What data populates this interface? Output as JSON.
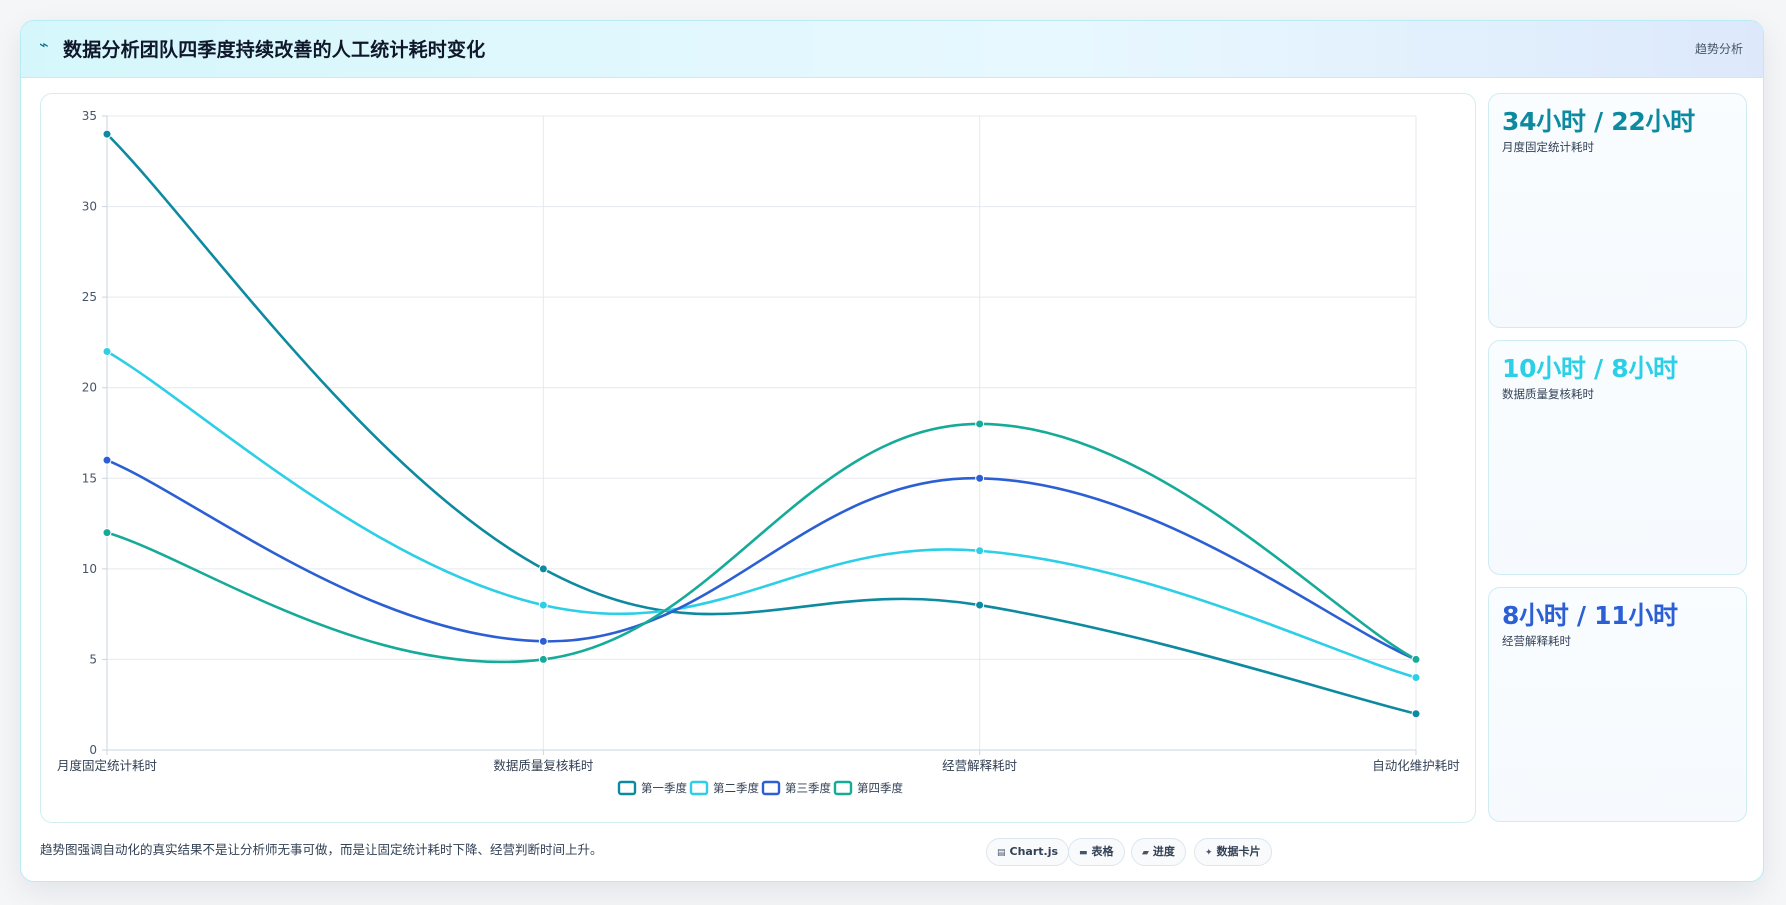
{
  "header": {
    "icon": "trend-line-icon",
    "title": "数据分析团队四季度持续改善的人工统计耗时变化",
    "tag": "趋势分析"
  },
  "colors": {
    "series": [
      "#0e8aa0",
      "#2ccfe6",
      "#2b5fd3",
      "#16ab98"
    ]
  },
  "chart_data": {
    "type": "line",
    "smooth": true,
    "categories": [
      "月度固定统计耗时",
      "数据质量复核耗时",
      "经营解释耗时",
      "自动化维护耗时"
    ],
    "series": [
      {
        "name": "第一季度",
        "values": [
          34,
          10,
          8,
          2
        ]
      },
      {
        "name": "第二季度",
        "values": [
          22,
          8,
          11,
          4
        ]
      },
      {
        "name": "第三季度",
        "values": [
          16,
          6,
          15,
          5
        ]
      },
      {
        "name": "第四季度",
        "values": [
          12,
          5,
          18,
          5
        ]
      }
    ],
    "ylim": [
      0,
      35
    ],
    "yticks": [
      0,
      5,
      10,
      15,
      20,
      25,
      30,
      35
    ],
    "grid": true,
    "legend_position": "bottom"
  },
  "stats": [
    {
      "value": "34小时 / 22小时",
      "label": "月度固定统计耗时",
      "color": "#0e8aa0"
    },
    {
      "value": "10小时 / 8小时",
      "label": "数据质量复核耗时",
      "color": "#2ccfe6"
    },
    {
      "value": "8小时 / 11小时",
      "label": "经营解释耗时",
      "color": "#2b5fd3"
    }
  ],
  "footer": {
    "note": "趋势图强调自动化的真实结果不是让分析师无事可做，而是让固定统计耗时下降、经营判断时间上升。",
    "chips": [
      {
        "icon": "chart-icon",
        "glyph": "▤",
        "label": "Chart.js"
      },
      {
        "icon": "table-icon",
        "glyph": "▬",
        "label": "表格"
      },
      {
        "icon": "progress-icon",
        "glyph": "▰",
        "label": "进度"
      },
      {
        "icon": "sparkle-icon",
        "glyph": "✦",
        "label": "数据卡片"
      }
    ]
  }
}
